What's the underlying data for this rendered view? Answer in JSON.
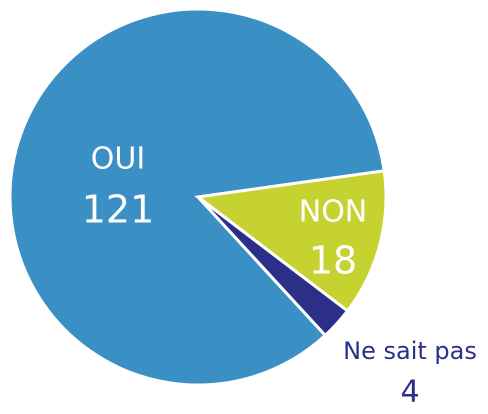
{
  "chart_data": {
    "type": "pie",
    "categories": [
      "OUI",
      "NON",
      "Ne sait pas"
    ],
    "values": [
      121,
      18,
      4
    ],
    "colors": [
      "#3a8fc4",
      "#c6d22f",
      "#2b2f87"
    ]
  }
}
